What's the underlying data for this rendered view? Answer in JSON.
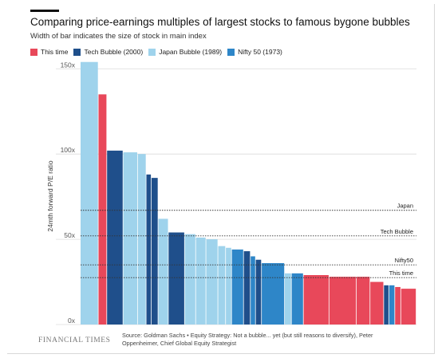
{
  "chart_data": {
    "type": "bar",
    "title": "Comparing price-earnings multiples of largest stocks to famous bygone bubbles",
    "subtitle": "Width of bar indicates the size of stock in main index",
    "ylabel": "24mth forward P/E ratio",
    "xlabel": "",
    "ylim": [
      0,
      152
    ],
    "yticks": [
      0,
      50,
      100,
      150
    ],
    "ytick_labels": [
      "0x",
      "50x",
      "100x",
      "150x"
    ],
    "grid": true,
    "legend_placement": "top-left",
    "series": [
      {
        "name": "This time",
        "color": "#e8485a"
      },
      {
        "name": "Tech Bubble (2000)",
        "color": "#1f4f8b"
      },
      {
        "name": "Japan Bubble (1989)",
        "color": "#9fd3ec"
      },
      {
        "name": "Nifty 50 (1973)",
        "color": "#2e86c8"
      }
    ],
    "bars": [
      {
        "series": "Japan Bubble (1989)",
        "value": 154,
        "weight": 2.1
      },
      {
        "series": "This time",
        "value": 135,
        "weight": 1.0
      },
      {
        "series": "Tech Bubble (2000)",
        "value": 102,
        "weight": 1.9
      },
      {
        "series": "Japan Bubble (1989)",
        "value": 101,
        "weight": 1.7
      },
      {
        "series": "Japan Bubble (1989)",
        "value": 100,
        "weight": 1.0
      },
      {
        "series": "Tech Bubble (2000)",
        "value": 88,
        "weight": 0.6
      },
      {
        "series": "Tech Bubble (2000)",
        "value": 86,
        "weight": 0.8
      },
      {
        "series": "Japan Bubble (1989)",
        "value": 62,
        "weight": 1.2
      },
      {
        "series": "Tech Bubble (2000)",
        "value": 54,
        "weight": 1.9
      },
      {
        "series": "Japan Bubble (1989)",
        "value": 53,
        "weight": 1.3
      },
      {
        "series": "Japan Bubble (1989)",
        "value": 51,
        "weight": 1.2
      },
      {
        "series": "Japan Bubble (1989)",
        "value": 50,
        "weight": 1.4
      },
      {
        "series": "Japan Bubble (1989)",
        "value": 46,
        "weight": 0.9
      },
      {
        "series": "Japan Bubble (1989)",
        "value": 45,
        "weight": 0.7
      },
      {
        "series": "Nifty 50 (1973)",
        "value": 44,
        "weight": 1.4
      },
      {
        "series": "Tech Bubble (2000)",
        "value": 43,
        "weight": 0.8
      },
      {
        "series": "Nifty 50 (1973)",
        "value": 40,
        "weight": 0.6
      },
      {
        "series": "Tech Bubble (2000)",
        "value": 38,
        "weight": 0.7
      },
      {
        "series": "Nifty 50 (1973)",
        "value": 36,
        "weight": 2.7
      },
      {
        "series": "Japan Bubble (1989)",
        "value": 30,
        "weight": 0.8
      },
      {
        "series": "Nifty 50 (1973)",
        "value": 30,
        "weight": 1.4
      },
      {
        "series": "This time",
        "value": 29,
        "weight": 3.0
      },
      {
        "series": "This time",
        "value": 28,
        "weight": 3.2
      },
      {
        "series": "This time",
        "value": 28,
        "weight": 1.6
      },
      {
        "series": "This time",
        "value": 25,
        "weight": 1.6
      },
      {
        "series": "Tech Bubble (2000)",
        "value": 23,
        "weight": 0.6
      },
      {
        "series": "Nifty 50 (1973)",
        "value": 23,
        "weight": 0.7
      },
      {
        "series": "This time",
        "value": 22,
        "weight": 0.7
      },
      {
        "series": "This time",
        "value": 21,
        "weight": 1.8
      }
    ],
    "reference_lines": [
      {
        "label": "Japan",
        "value": 67
      },
      {
        "label": "Tech Bubble",
        "value": 52
      },
      {
        "label": "Nifty50",
        "value": 35
      },
      {
        "label": "This time",
        "value": 27.5
      }
    ]
  },
  "footer": {
    "logo": "FINANCIAL TIMES",
    "source": "Source: Goldman Sachs • Equity Strategy: Not a bubble... yet (but still reasons to diversify), Peter Oppenheimer, Chief Global Equity Strategist"
  }
}
